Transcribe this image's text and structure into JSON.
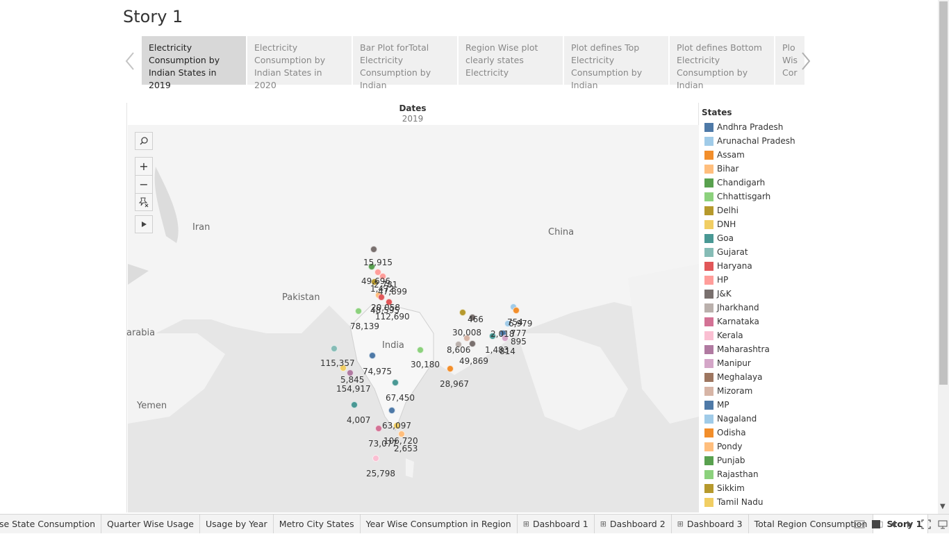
{
  "story_title": "Story 1",
  "nav": {
    "prev_icon": "chevron-left-icon",
    "next_icon": "chevron-right-icon"
  },
  "story_points": [
    {
      "label": "Electricity Consumption by Indian States in 2019",
      "active": true
    },
    {
      "label": "Electricity Consumption by Indian States in 2020",
      "active": false
    },
    {
      "label": "Bar Plot forTotal Electricity Consumption by Indian",
      "active": false
    },
    {
      "label": "Region Wise plot clearly states Electricity",
      "active": false
    },
    {
      "label": "Plot defines Top Electricity Consumption by Indian",
      "active": false
    },
    {
      "label": "Plot defines Bottom Electricity Consumption by Indian",
      "active": false
    },
    {
      "label": "Plo Wis Cor",
      "active": false
    }
  ],
  "viz": {
    "dates_title": "Dates",
    "dates_value": "2019"
  },
  "map_labels": [
    "Iran",
    "Pakistan",
    "India",
    "China",
    "Yemen",
    "arabia"
  ],
  "map_controls": {
    "search_icon": "search-icon",
    "zoom_in": "+",
    "zoom_out": "−",
    "pin_icon": "pin-icon",
    "play_icon": "play-icon"
  },
  "data_labels": [
    "15,915",
    "49,696",
    "1,472",
    "2,781",
    "47,899",
    "20,058",
    "48,595",
    "112,690",
    "78,139",
    "466",
    "754",
    "6,979",
    "30,008",
    "2,018",
    "777",
    "895",
    "8,606",
    "1,483",
    "814",
    "49,869",
    "115,357",
    "74,975",
    "30,180",
    "5,845",
    "154,917",
    "28,967",
    "67,450",
    "4,007",
    "63,097",
    "73,077",
    "106,720",
    "2,653",
    "25,798"
  ],
  "legend": {
    "title": "States",
    "items": [
      {
        "label": "Andhra Pradesh",
        "color": "#4e79a7"
      },
      {
        "label": "Arunachal Pradesh",
        "color": "#a0cbe8"
      },
      {
        "label": "Assam",
        "color": "#f28e2b"
      },
      {
        "label": "Bihar",
        "color": "#ffbe7d"
      },
      {
        "label": "Chandigarh",
        "color": "#59a14f"
      },
      {
        "label": "Chhattisgarh",
        "color": "#8cd17d"
      },
      {
        "label": "Delhi",
        "color": "#b6992d"
      },
      {
        "label": "DNH",
        "color": "#f1ce63"
      },
      {
        "label": "Goa",
        "color": "#499894"
      },
      {
        "label": "Gujarat",
        "color": "#86bcb6"
      },
      {
        "label": "Haryana",
        "color": "#e15759"
      },
      {
        "label": "HP",
        "color": "#ff9d9a"
      },
      {
        "label": "J&K",
        "color": "#79706e"
      },
      {
        "label": "Jharkhand",
        "color": "#bab0ac"
      },
      {
        "label": "Karnataka",
        "color": "#d37295"
      },
      {
        "label": "Kerala",
        "color": "#fabfd2"
      },
      {
        "label": "Maharashtra",
        "color": "#b07aa1"
      },
      {
        "label": "Manipur",
        "color": "#d4a6c8"
      },
      {
        "label": "Meghalaya",
        "color": "#9d7660"
      },
      {
        "label": "Mizoram",
        "color": "#d7b5a6"
      },
      {
        "label": "MP",
        "color": "#4e79a7"
      },
      {
        "label": "Nagaland",
        "color": "#a0cbe8"
      },
      {
        "label": "Odisha",
        "color": "#f28e2b"
      },
      {
        "label": "Pondy",
        "color": "#ffbe7d"
      },
      {
        "label": "Punjab",
        "color": "#59a14f"
      },
      {
        "label": "Rajasthan",
        "color": "#8cd17d"
      },
      {
        "label": "Sikkim",
        "color": "#b6992d"
      },
      {
        "label": "Tamil Nadu",
        "color": "#f1ce63"
      }
    ]
  },
  "tabs": [
    {
      "label": "se State Consumption",
      "icon": "",
      "active": false
    },
    {
      "label": "Quarter Wise Usage",
      "icon": "",
      "active": false
    },
    {
      "label": "Usage by Year",
      "icon": "",
      "active": false
    },
    {
      "label": "Metro City States",
      "icon": "",
      "active": false
    },
    {
      "label": "Year Wise Consumption in Region",
      "icon": "",
      "active": false
    },
    {
      "label": "Dashboard 1",
      "icon": "⊞",
      "active": false
    },
    {
      "label": "Dashboard 2",
      "icon": "⊞",
      "active": false
    },
    {
      "label": "Dashboard 3",
      "icon": "⊞",
      "active": false
    },
    {
      "label": "Total Region Consumption",
      "icon": "",
      "active": false
    },
    {
      "label": "Story 1",
      "icon": "▯",
      "active": true
    }
  ]
}
